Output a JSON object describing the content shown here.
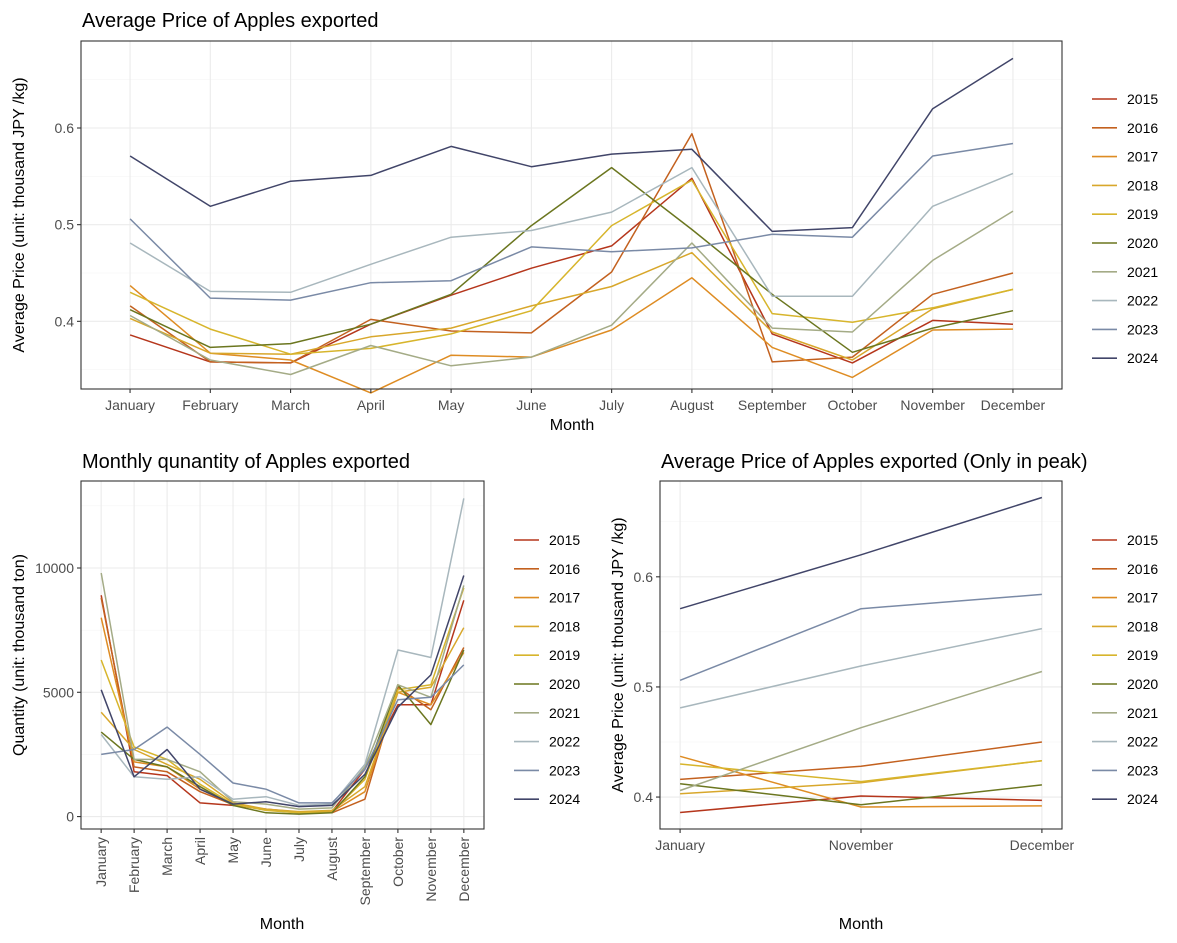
{
  "chart_data": [
    {
      "type": "line",
      "title": "Average Price of Apples exported",
      "xlabel": "Month",
      "ylabel": "Average Price (unit: thousand JPY /kg)",
      "categories": [
        "January",
        "February",
        "March",
        "April",
        "May",
        "June",
        "July",
        "August",
        "September",
        "October",
        "November",
        "December"
      ],
      "ylim": [
        0.33,
        0.69
      ],
      "yticks": [
        0.4,
        0.5,
        0.6
      ],
      "yticklabels": [
        "0.4",
        "0.5",
        "0.6"
      ],
      "grid": true,
      "legend": "right",
      "series": [
        {
          "name": "2015",
          "color": "#b5361c",
          "values": [
            0.386,
            0.358,
            0.357,
            0.397,
            0.427,
            0.455,
            0.478,
            0.548,
            0.387,
            0.357,
            0.401,
            0.397
          ]
        },
        {
          "name": "2016",
          "color": "#c3611f",
          "values": [
            0.416,
            0.358,
            0.357,
            0.402,
            0.39,
            0.388,
            0.451,
            0.594,
            0.358,
            0.363,
            0.428,
            0.45
          ]
        },
        {
          "name": "2017",
          "color": "#de8c23",
          "values": [
            0.437,
            0.367,
            0.36,
            0.326,
            0.365,
            0.363,
            0.391,
            0.445,
            0.373,
            0.342,
            0.391,
            0.392
          ]
        },
        {
          "name": "2018",
          "color": "#d8a72b",
          "values": [
            0.403,
            0.367,
            0.366,
            0.384,
            0.393,
            0.416,
            0.436,
            0.471,
            0.389,
            0.36,
            0.413,
            0.433
          ]
        },
        {
          "name": "2019",
          "color": "#d7b52c",
          "values": [
            0.43,
            0.392,
            0.366,
            0.372,
            0.387,
            0.411,
            0.499,
            0.546,
            0.408,
            0.399,
            0.414,
            0.433
          ]
        },
        {
          "name": "2020",
          "color": "#6b761f",
          "values": [
            0.412,
            0.373,
            0.377,
            0.397,
            0.428,
            0.499,
            0.559,
            0.495,
            0.428,
            0.368,
            0.393,
            0.411
          ]
        },
        {
          "name": "2021",
          "color": "#a4ab86",
          "values": [
            0.406,
            0.36,
            0.345,
            0.375,
            0.354,
            0.363,
            0.396,
            0.481,
            0.393,
            0.389,
            0.463,
            0.514
          ]
        },
        {
          "name": "2022",
          "color": "#a8b7bd",
          "values": [
            0.481,
            0.431,
            0.43,
            0.459,
            0.487,
            0.494,
            0.513,
            0.559,
            0.426,
            0.426,
            0.519,
            0.553
          ]
        },
        {
          "name": "2023",
          "color": "#7a8aa6",
          "values": [
            0.506,
            0.424,
            0.422,
            0.44,
            0.442,
            0.477,
            0.472,
            0.476,
            0.49,
            0.487,
            0.571,
            0.584
          ]
        },
        {
          "name": "2024",
          "color": "#414569",
          "values": [
            0.571,
            0.519,
            0.545,
            0.551,
            0.581,
            0.56,
            0.573,
            0.578,
            0.493,
            0.497,
            0.62,
            0.672
          ]
        }
      ]
    },
    {
      "type": "line",
      "title": "Monthly qunantity of Apples exported",
      "xlabel": "Month",
      "ylabel": "Quantity (unit: thousand ton)",
      "categories": [
        "January",
        "February",
        "March",
        "April",
        "May",
        "June",
        "July",
        "August",
        "September",
        "October",
        "November",
        "December"
      ],
      "ylim": [
        -500,
        13500
      ],
      "yticks": [
        0,
        5000,
        10000
      ],
      "yticklabels": [
        "0",
        "5000",
        "10000"
      ],
      "grid": true,
      "legend": "right",
      "series": [
        {
          "name": "2015",
          "color": "#b5361c",
          "values": [
            8900,
            1800,
            1650,
            550,
            450,
            300,
            180,
            200,
            1900,
            4500,
            4500,
            8700
          ]
        },
        {
          "name": "2016",
          "color": "#c3611f",
          "values": [
            8800,
            2000,
            1800,
            1000,
            480,
            270,
            150,
            150,
            700,
            5200,
            4300,
            6800
          ]
        },
        {
          "name": "2017",
          "color": "#de8c23",
          "values": [
            8000,
            2200,
            2000,
            1100,
            500,
            280,
            170,
            200,
            1000,
            5000,
            4500,
            6600
          ]
        },
        {
          "name": "2018",
          "color": "#d8a72b",
          "values": [
            4200,
            2700,
            2100,
            1500,
            550,
            300,
            200,
            250,
            1200,
            5000,
            5200,
            7600
          ]
        },
        {
          "name": "2019",
          "color": "#d7b52c",
          "values": [
            6300,
            2800,
            2300,
            1300,
            500,
            250,
            150,
            180,
            1500,
            5100,
            5300,
            9200
          ]
        },
        {
          "name": "2020",
          "color": "#6b761f",
          "values": [
            3400,
            2300,
            2000,
            1200,
            450,
            150,
            100,
            150,
            1600,
            5300,
            3700,
            6700
          ]
        },
        {
          "name": "2021",
          "color": "#a4ab86",
          "values": [
            9800,
            2300,
            2300,
            1800,
            600,
            500,
            300,
            350,
            2000,
            5300,
            4800,
            9300
          ]
        },
        {
          "name": "2022",
          "color": "#a8b7bd",
          "values": [
            3300,
            1600,
            1500,
            1600,
            700,
            800,
            450,
            500,
            2100,
            6700,
            6400,
            12800
          ]
        },
        {
          "name": "2023",
          "color": "#7a8aa6",
          "values": [
            2500,
            2700,
            3600,
            2500,
            1350,
            1100,
            550,
            550,
            1900,
            4700,
            4800,
            6100
          ]
        },
        {
          "name": "2024",
          "color": "#414569",
          "values": [
            5100,
            1600,
            2700,
            1100,
            500,
            600,
            400,
            450,
            1700,
            4400,
            5700,
            9700
          ]
        }
      ]
    },
    {
      "type": "line",
      "title": "Average Price of Apples exported (Only in peak)",
      "xlabel": "Month",
      "ylabel": "Average Price (unit: thousand JPY /kg)",
      "categories": [
        "January",
        "November",
        "December"
      ],
      "ylim": [
        0.371,
        0.687
      ],
      "yticks": [
        0.4,
        0.5,
        0.6
      ],
      "yticklabels": [
        "0.4",
        "0.5",
        "0.6"
      ],
      "grid": true,
      "legend": "right",
      "series": [
        {
          "name": "2015",
          "color": "#b5361c",
          "values": [
            0.386,
            0.401,
            0.397
          ]
        },
        {
          "name": "2016",
          "color": "#c3611f",
          "values": [
            0.416,
            0.428,
            0.45
          ]
        },
        {
          "name": "2017",
          "color": "#de8c23",
          "values": [
            0.437,
            0.391,
            0.392
          ]
        },
        {
          "name": "2018",
          "color": "#d8a72b",
          "values": [
            0.403,
            0.413,
            0.433
          ]
        },
        {
          "name": "2019",
          "color": "#d7b52c",
          "values": [
            0.43,
            0.414,
            0.433
          ]
        },
        {
          "name": "2020",
          "color": "#6b761f",
          "values": [
            0.412,
            0.393,
            0.411
          ]
        },
        {
          "name": "2021",
          "color": "#a4ab86",
          "values": [
            0.406,
            0.463,
            0.514
          ]
        },
        {
          "name": "2022",
          "color": "#a8b7bd",
          "values": [
            0.481,
            0.519,
            0.553
          ]
        },
        {
          "name": "2023",
          "color": "#7a8aa6",
          "values": [
            0.506,
            0.571,
            0.584
          ]
        },
        {
          "name": "2024",
          "color": "#414569",
          "values": [
            0.571,
            0.62,
            0.672
          ]
        }
      ]
    }
  ]
}
